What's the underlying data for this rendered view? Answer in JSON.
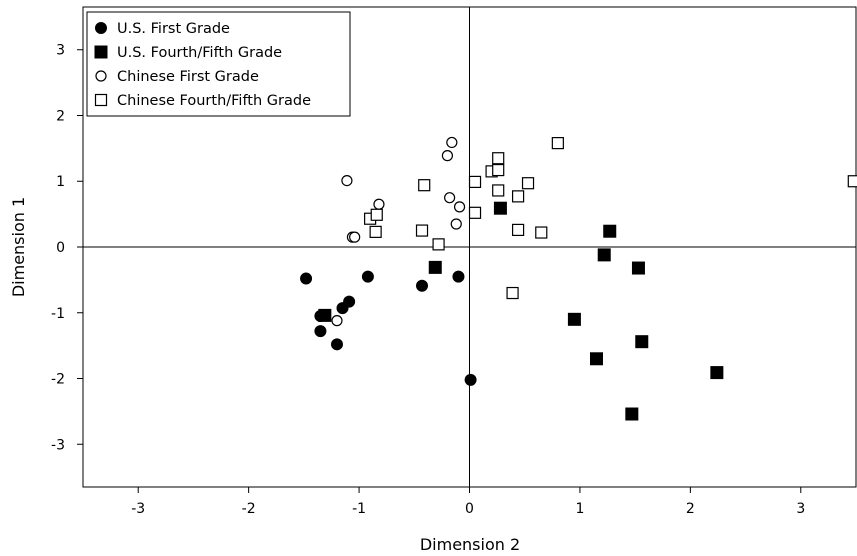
{
  "chart_data": {
    "type": "scatter",
    "xlabel": "Dimension 2",
    "ylabel": "Dimension 1",
    "xlim": [
      -3.5,
      3.5
    ],
    "ylim": [
      -3.65,
      3.65
    ],
    "xticks": [
      -3,
      -2,
      -1,
      0,
      1,
      2,
      3
    ],
    "yticks": [
      -3,
      -2,
      -1,
      0,
      1,
      2,
      3
    ],
    "grid": false,
    "reference_lines": {
      "x": 0,
      "y": 0
    },
    "legend": "top-left",
    "series": [
      {
        "name": "U.S. First Grade",
        "marker": "circle",
        "filled": true,
        "points": [
          [
            -1.48,
            -0.48
          ],
          [
            -1.35,
            -1.05
          ],
          [
            -1.35,
            -1.28
          ],
          [
            -1.2,
            -1.48
          ],
          [
            -1.15,
            -0.93
          ],
          [
            -1.09,
            -0.83
          ],
          [
            -0.92,
            -0.45
          ],
          [
            -0.43,
            -0.59
          ],
          [
            -0.1,
            -0.45
          ],
          [
            0.01,
            -2.02
          ]
        ]
      },
      {
        "name": "U.S. Fourth/Fifth Grade",
        "marker": "square",
        "filled": true,
        "points": [
          [
            -1.31,
            -1.04
          ],
          [
            -0.31,
            -0.31
          ],
          [
            0.28,
            0.59
          ],
          [
            0.95,
            -1.1
          ],
          [
            1.15,
            -1.7
          ],
          [
            1.22,
            -0.12
          ],
          [
            1.27,
            0.24
          ],
          [
            1.47,
            -2.54
          ],
          [
            1.53,
            -0.32
          ],
          [
            1.56,
            -1.44
          ],
          [
            2.24,
            -1.91
          ]
        ]
      },
      {
        "name": "Chinese First Grade",
        "marker": "circle",
        "filled": false,
        "points": [
          [
            -1.2,
            -1.12
          ],
          [
            -1.11,
            1.01
          ],
          [
            -1.06,
            0.15
          ],
          [
            -1.04,
            0.15
          ],
          [
            -0.82,
            0.65
          ],
          [
            -0.2,
            1.39
          ],
          [
            -0.16,
            1.59
          ],
          [
            -0.18,
            0.75
          ],
          [
            -0.12,
            0.35
          ],
          [
            -0.09,
            0.61
          ]
        ]
      },
      {
        "name": "Chinese Fourth/Fifth Grade",
        "marker": "square",
        "filled": false,
        "points": [
          [
            -0.9,
            0.43
          ],
          [
            -0.84,
            0.49
          ],
          [
            -0.85,
            0.23
          ],
          [
            -0.41,
            0.94
          ],
          [
            -0.43,
            0.25
          ],
          [
            -0.28,
            0.04
          ],
          [
            0.05,
            0.99
          ],
          [
            0.05,
            0.52
          ],
          [
            0.2,
            1.15
          ],
          [
            0.26,
            1.35
          ],
          [
            0.26,
            1.17
          ],
          [
            0.26,
            0.86
          ],
          [
            0.39,
            -0.7
          ],
          [
            0.44,
            0.77
          ],
          [
            0.44,
            0.26
          ],
          [
            0.53,
            0.97
          ],
          [
            0.65,
            0.22
          ],
          [
            0.8,
            1.58
          ],
          [
            3.48,
            1.0
          ]
        ]
      }
    ]
  }
}
